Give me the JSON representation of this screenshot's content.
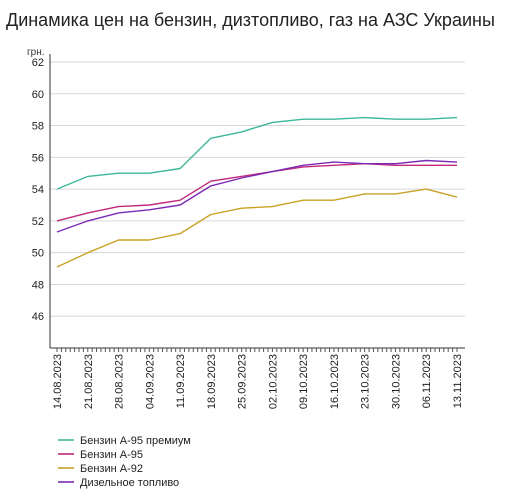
{
  "title": "Динамика цен на бензин, дизтопливо, газ на АЗС Украины",
  "chart_data": {
    "type": "line",
    "title": "Динамика цен на бензин, дизтопливо, газ на АЗС Украины",
    "ylabel": "грн.",
    "xlabel": "",
    "ylim": [
      44,
      62
    ],
    "y_ticks": [
      46,
      48,
      50,
      52,
      54,
      56,
      58,
      60,
      62
    ],
    "x_ticks": [
      "14.08.2023",
      "21.08.2023",
      "28.08.2023",
      "04.09.2023",
      "11.09.2023",
      "18.09.2023",
      "25.09.2023",
      "02.10.2023",
      "09.10.2023",
      "16.10.2023",
      "23.10.2023",
      "30.10.2023",
      "06.11.2023",
      "13.11.2023"
    ],
    "grid": "horizontal",
    "legend": "bottom-left",
    "x": [
      "14.08.2023",
      "21.08.2023",
      "28.08.2023",
      "04.09.2023",
      "11.09.2023",
      "18.09.2023",
      "25.09.2023",
      "02.10.2023",
      "09.10.2023",
      "16.10.2023",
      "23.10.2023",
      "30.10.2023",
      "06.11.2023",
      "13.11.2023"
    ],
    "series": [
      {
        "name": "Бензин А-95 премиум",
        "color": "#3cb89a",
        "values": [
          54.0,
          54.8,
          55.0,
          55.0,
          55.3,
          57.2,
          57.6,
          58.2,
          58.4,
          58.4,
          58.5,
          58.4,
          58.4,
          58.5
        ]
      },
      {
        "name": "Бензин А-95",
        "color": "#c2287a",
        "values": [
          52.0,
          52.5,
          52.9,
          53.0,
          53.3,
          54.5,
          54.8,
          55.1,
          55.4,
          55.5,
          55.6,
          55.5,
          55.5,
          55.5
        ]
      },
      {
        "name": "Бензин А-92",
        "color": "#c9a227",
        "values": [
          49.1,
          50.0,
          50.8,
          50.8,
          51.2,
          52.4,
          52.8,
          52.9,
          53.3,
          53.3,
          53.7,
          53.7,
          54.0,
          53.5
        ]
      },
      {
        "name": "Дизельное топливо",
        "color": "#7b2ab5",
        "values": [
          51.3,
          52.0,
          52.5,
          52.7,
          53.0,
          54.2,
          54.7,
          55.1,
          55.5,
          55.7,
          55.6,
          55.6,
          55.8,
          55.7
        ]
      }
    ]
  }
}
